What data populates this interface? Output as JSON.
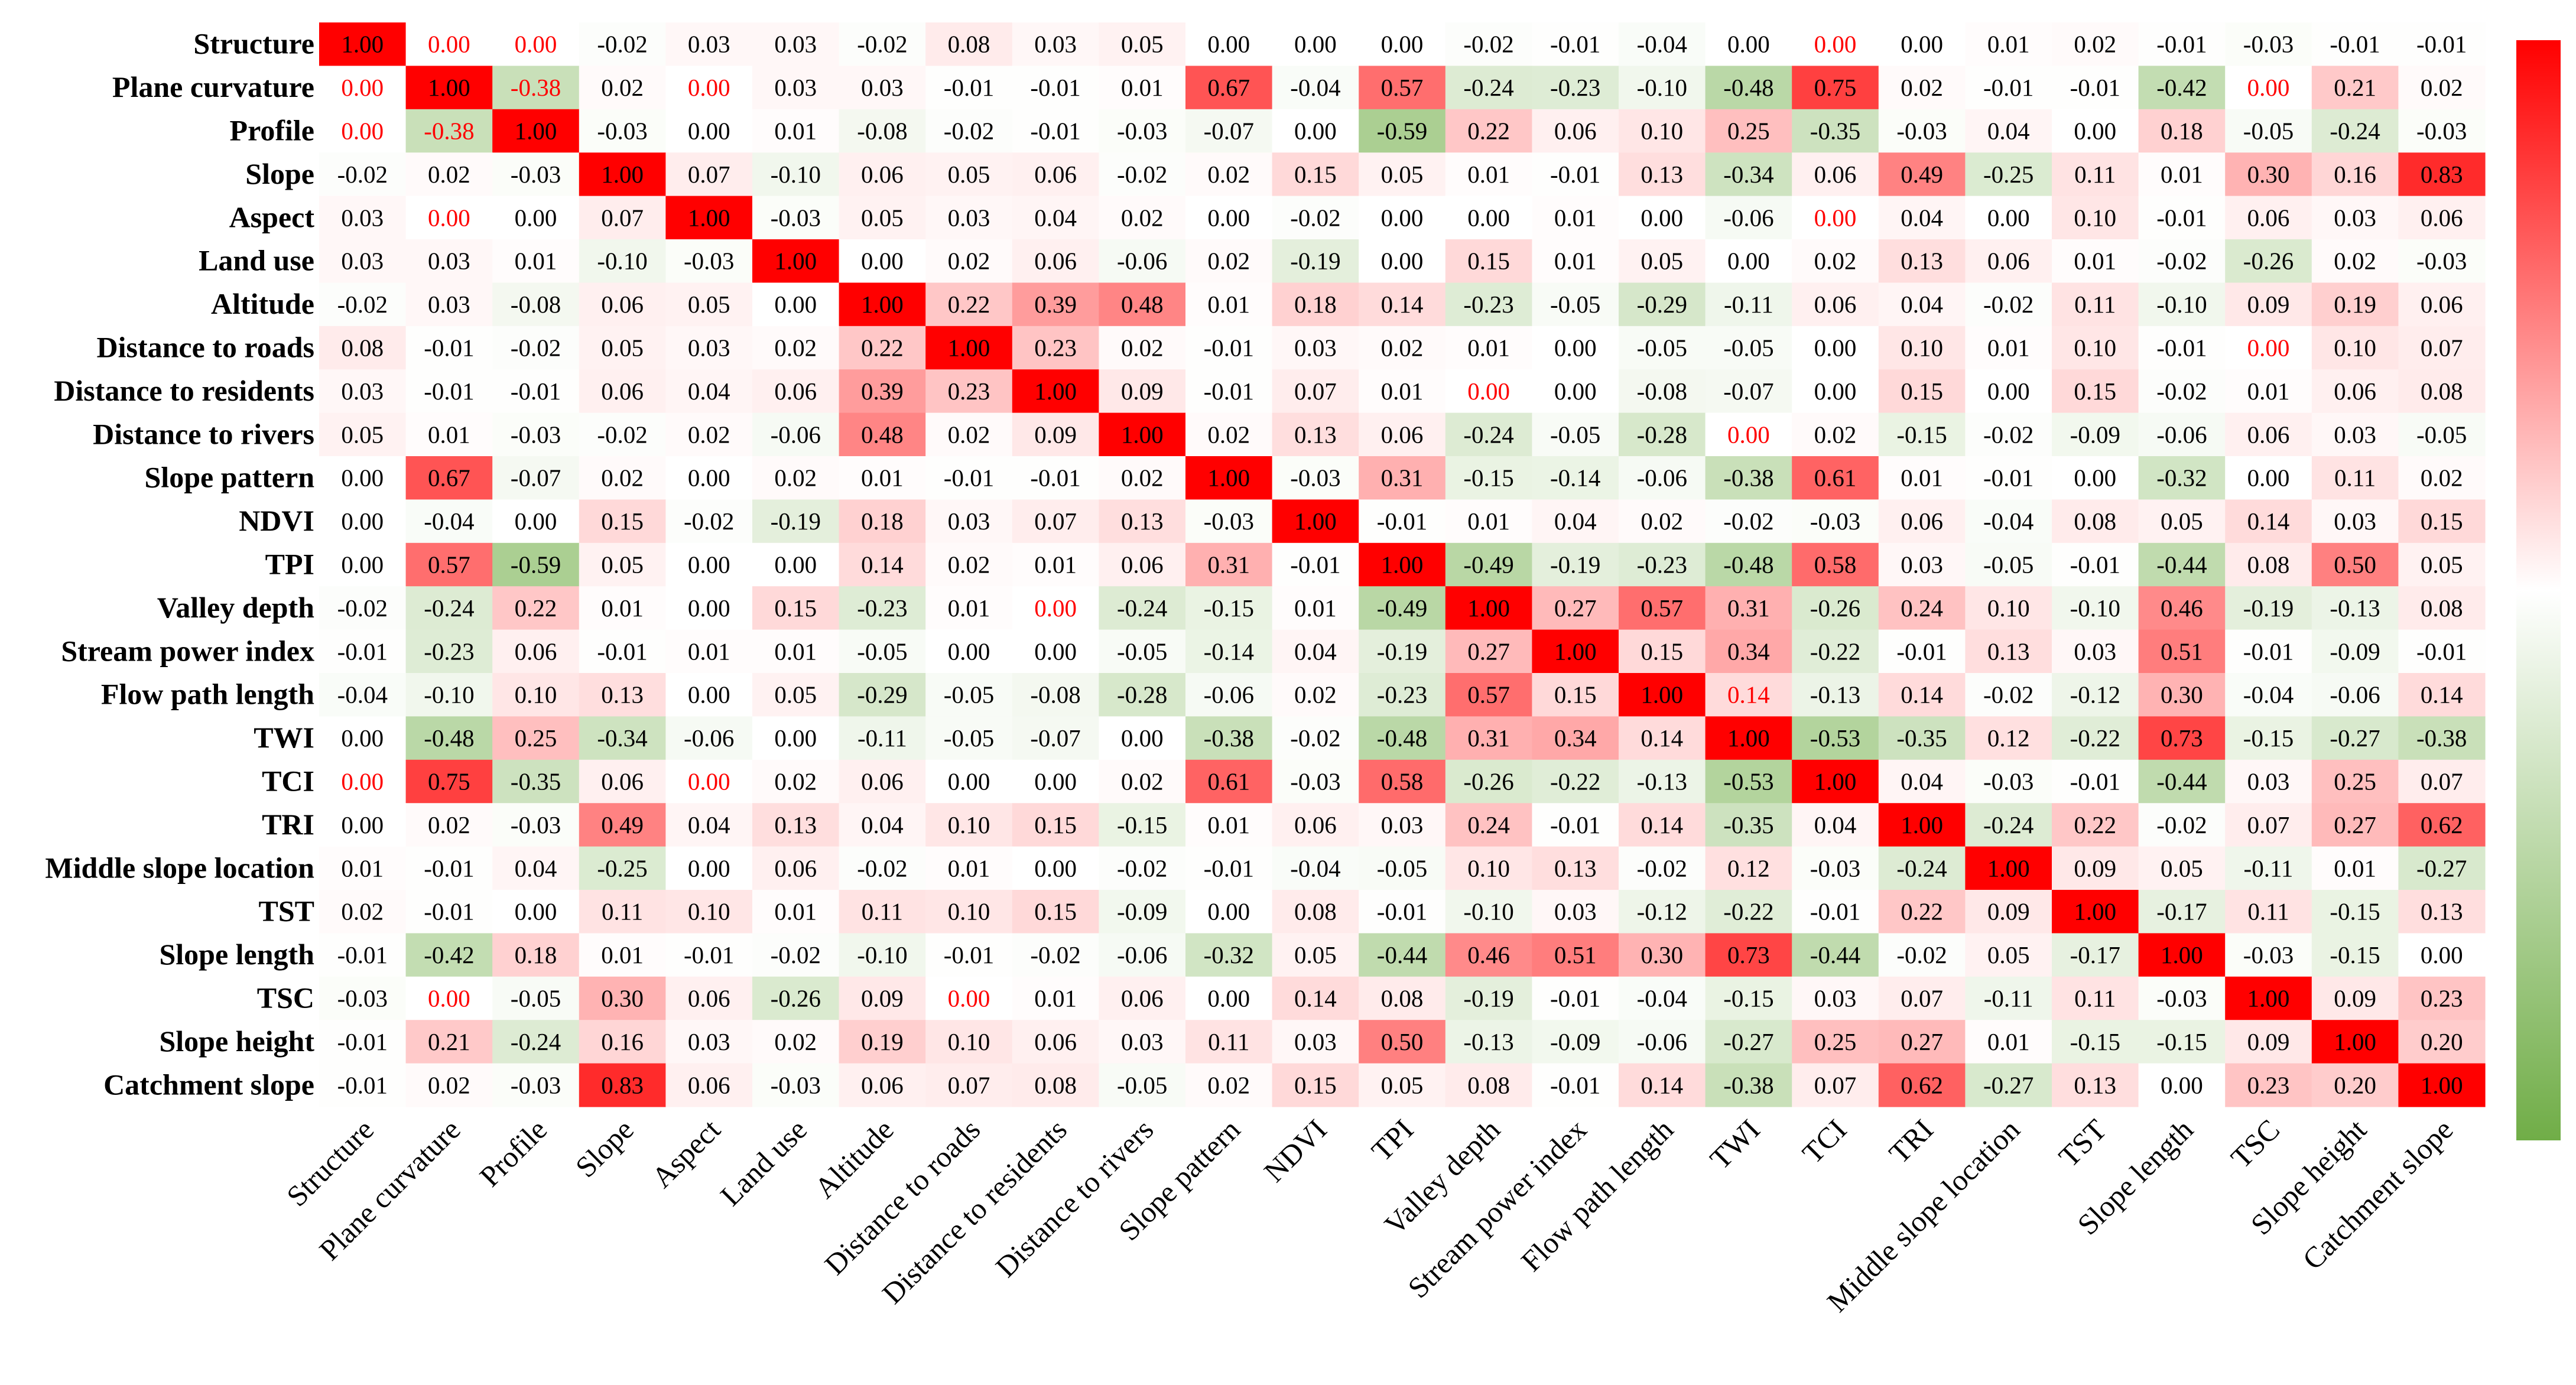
{
  "chart_data": {
    "type": "heatmap",
    "title": "",
    "labels": [
      "Structure",
      "Plane curvature",
      "Profile",
      "Slope",
      "Aspect",
      "Land use",
      "Altitude",
      "Distance to roads",
      "Distance to residents",
      "Distance to rivers",
      "Slope pattern",
      "NDVI",
      "TPI",
      "Valley depth",
      "Stream power index",
      "Flow path length",
      "TWI",
      "TCI",
      "TRI",
      "Middle slope location",
      "TST",
      "Slope length",
      "TSC",
      "Slope height",
      "Catchment slope"
    ],
    "values": [
      [
        "1.00",
        "0.00",
        "0.00",
        "-0.02",
        "0.03",
        "0.03",
        "-0.02",
        "0.08",
        "0.03",
        "0.05",
        "0.00",
        "0.00",
        "0.00",
        "-0.02",
        "-0.01",
        "-0.04",
        "0.00",
        "0.00",
        "0.00",
        "0.01",
        "0.02",
        "-0.01",
        "-0.03",
        "-0.01",
        "-0.01"
      ],
      [
        "0.00",
        "1.00",
        "-0.38",
        "0.02",
        "0.00",
        "0.03",
        "0.03",
        "-0.01",
        "-0.01",
        "0.01",
        "0.67",
        "-0.04",
        "0.57",
        "-0.24",
        "-0.23",
        "-0.10",
        "-0.48",
        "0.75",
        "0.02",
        "-0.01",
        "-0.01",
        "-0.42",
        "0.00",
        "0.21",
        "0.02"
      ],
      [
        "0.00",
        "-0.38",
        "1.00",
        "-0.03",
        "0.00",
        "0.01",
        "-0.08",
        "-0.02",
        "-0.01",
        "-0.03",
        "-0.07",
        "0.00",
        "-0.59",
        "0.22",
        "0.06",
        "0.10",
        "0.25",
        "-0.35",
        "-0.03",
        "0.04",
        "0.00",
        "0.18",
        "-0.05",
        "-0.24",
        "-0.03"
      ],
      [
        "-0.02",
        "0.02",
        "-0.03",
        "1.00",
        "0.07",
        "-0.10",
        "0.06",
        "0.05",
        "0.06",
        "-0.02",
        "0.02",
        "0.15",
        "0.05",
        "0.01",
        "-0.01",
        "0.13",
        "-0.34",
        "0.06",
        "0.49",
        "-0.25",
        "0.11",
        "0.01",
        "0.30",
        "0.16",
        "0.83"
      ],
      [
        "0.03",
        "0.00",
        "0.00",
        "0.07",
        "1.00",
        "-0.03",
        "0.05",
        "0.03",
        "0.04",
        "0.02",
        "0.00",
        "-0.02",
        "0.00",
        "0.00",
        "0.01",
        "0.00",
        "-0.06",
        "0.00",
        "0.04",
        "0.00",
        "0.10",
        "-0.01",
        "0.06",
        "0.03",
        "0.06"
      ],
      [
        "0.03",
        "0.03",
        "0.01",
        "-0.10",
        "-0.03",
        "1.00",
        "0.00",
        "0.02",
        "0.06",
        "-0.06",
        "0.02",
        "-0.19",
        "0.00",
        "0.15",
        "0.01",
        "0.05",
        "0.00",
        "0.02",
        "0.13",
        "0.06",
        "0.01",
        "-0.02",
        "-0.26",
        "0.02",
        "-0.03"
      ],
      [
        "-0.02",
        "0.03",
        "-0.08",
        "0.06",
        "0.05",
        "0.00",
        "1.00",
        "0.22",
        "0.39",
        "0.48",
        "0.01",
        "0.18",
        "0.14",
        "-0.23",
        "-0.05",
        "-0.29",
        "-0.11",
        "0.06",
        "0.04",
        "-0.02",
        "0.11",
        "-0.10",
        "0.09",
        "0.19",
        "0.06"
      ],
      [
        "0.08",
        "-0.01",
        "-0.02",
        "0.05",
        "0.03",
        "0.02",
        "0.22",
        "1.00",
        "0.23",
        "0.02",
        "-0.01",
        "0.03",
        "0.02",
        "0.01",
        "0.00",
        "-0.05",
        "-0.05",
        "0.00",
        "0.10",
        "0.01",
        "0.10",
        "-0.01",
        "0.00",
        "0.10",
        "0.07"
      ],
      [
        "0.03",
        "-0.01",
        "-0.01",
        "0.06",
        "0.04",
        "0.06",
        "0.39",
        "0.23",
        "1.00",
        "0.09",
        "-0.01",
        "0.07",
        "0.01",
        "0.00",
        "0.00",
        "-0.08",
        "-0.07",
        "0.00",
        "0.15",
        "0.00",
        "0.15",
        "-0.02",
        "0.01",
        "0.06",
        "0.08"
      ],
      [
        "0.05",
        "0.01",
        "-0.03",
        "-0.02",
        "0.02",
        "-0.06",
        "0.48",
        "0.02",
        "0.09",
        "1.00",
        "0.02",
        "0.13",
        "0.06",
        "-0.24",
        "-0.05",
        "-0.28",
        "0.00",
        "0.02",
        "-0.15",
        "-0.02",
        "-0.09",
        "-0.06",
        "0.06",
        "0.03",
        "-0.05"
      ],
      [
        "0.00",
        "0.67",
        "-0.07",
        "0.02",
        "0.00",
        "0.02",
        "0.01",
        "-0.01",
        "-0.01",
        "0.02",
        "1.00",
        "-0.03",
        "0.31",
        "-0.15",
        "-0.14",
        "-0.06",
        "-0.38",
        "0.61",
        "0.01",
        "-0.01",
        "0.00",
        "-0.32",
        "0.00",
        "0.11",
        "0.02"
      ],
      [
        "0.00",
        "-0.04",
        "0.00",
        "0.15",
        "-0.02",
        "-0.19",
        "0.18",
        "0.03",
        "0.07",
        "0.13",
        "-0.03",
        "1.00",
        "-0.01",
        "0.01",
        "0.04",
        "0.02",
        "-0.02",
        "-0.03",
        "0.06",
        "-0.04",
        "0.08",
        "0.05",
        "0.14",
        "0.03",
        "0.15"
      ],
      [
        "0.00",
        "0.57",
        "-0.59",
        "0.05",
        "0.00",
        "0.00",
        "0.14",
        "0.02",
        "0.01",
        "0.06",
        "0.31",
        "-0.01",
        "1.00",
        "-0.49",
        "-0.19",
        "-0.23",
        "-0.48",
        "0.58",
        "0.03",
        "-0.05",
        "-0.01",
        "-0.44",
        "0.08",
        "0.50",
        "0.05"
      ],
      [
        "-0.02",
        "-0.24",
        "0.22",
        "0.01",
        "0.00",
        "0.15",
        "-0.23",
        "0.01",
        "0.00",
        "-0.24",
        "-0.15",
        "0.01",
        "-0.49",
        "1.00",
        "0.27",
        "0.57",
        "0.31",
        "-0.26",
        "0.24",
        "0.10",
        "-0.10",
        "0.46",
        "-0.19",
        "-0.13",
        "0.08"
      ],
      [
        "-0.01",
        "-0.23",
        "0.06",
        "-0.01",
        "0.01",
        "0.01",
        "-0.05",
        "0.00",
        "0.00",
        "-0.05",
        "-0.14",
        "0.04",
        "-0.19",
        "0.27",
        "1.00",
        "0.15",
        "0.34",
        "-0.22",
        "-0.01",
        "0.13",
        "0.03",
        "0.51",
        "-0.01",
        "-0.09",
        "-0.01"
      ],
      [
        "-0.04",
        "-0.10",
        "0.10",
        "0.13",
        "0.00",
        "0.05",
        "-0.29",
        "-0.05",
        "-0.08",
        "-0.28",
        "-0.06",
        "0.02",
        "-0.23",
        "0.57",
        "0.15",
        "1.00",
        "0.14",
        "-0.13",
        "0.14",
        "-0.02",
        "-0.12",
        "0.30",
        "-0.04",
        "-0.06",
        "0.14"
      ],
      [
        "0.00",
        "-0.48",
        "0.25",
        "-0.34",
        "-0.06",
        "0.00",
        "-0.11",
        "-0.05",
        "-0.07",
        "0.00",
        "-0.38",
        "-0.02",
        "-0.48",
        "0.31",
        "0.34",
        "0.14",
        "1.00",
        "-0.53",
        "-0.35",
        "0.12",
        "-0.22",
        "0.73",
        "-0.15",
        "-0.27",
        "-0.38"
      ],
      [
        "0.00",
        "0.75",
        "-0.35",
        "0.06",
        "0.00",
        "0.02",
        "0.06",
        "0.00",
        "0.00",
        "0.02",
        "0.61",
        "-0.03",
        "0.58",
        "-0.26",
        "-0.22",
        "-0.13",
        "-0.53",
        "1.00",
        "0.04",
        "-0.03",
        "-0.01",
        "-0.44",
        "0.03",
        "0.25",
        "0.07"
      ],
      [
        "0.00",
        "0.02",
        "-0.03",
        "0.49",
        "0.04",
        "0.13",
        "0.04",
        "0.10",
        "0.15",
        "-0.15",
        "0.01",
        "0.06",
        "0.03",
        "0.24",
        "-0.01",
        "0.14",
        "-0.35",
        "0.04",
        "1.00",
        "-0.24",
        "0.22",
        "-0.02",
        "0.07",
        "0.27",
        "0.62"
      ],
      [
        "0.01",
        "-0.01",
        "0.04",
        "-0.25",
        "0.00",
        "0.06",
        "-0.02",
        "0.01",
        "0.00",
        "-0.02",
        "-0.01",
        "-0.04",
        "-0.05",
        "0.10",
        "0.13",
        "-0.02",
        "0.12",
        "-0.03",
        "-0.24",
        "1.00",
        "0.09",
        "0.05",
        "-0.11",
        "0.01",
        "-0.27"
      ],
      [
        "0.02",
        "-0.01",
        "0.00",
        "0.11",
        "0.10",
        "0.01",
        "0.11",
        "0.10",
        "0.15",
        "-0.09",
        "0.00",
        "0.08",
        "-0.01",
        "-0.10",
        "0.03",
        "-0.12",
        "-0.22",
        "-0.01",
        "0.22",
        "0.09",
        "1.00",
        "-0.17",
        "0.11",
        "-0.15",
        "0.13"
      ],
      [
        "-0.01",
        "-0.42",
        "0.18",
        "0.01",
        "-0.01",
        "-0.02",
        "-0.10",
        "-0.01",
        "-0.02",
        "-0.06",
        "-0.32",
        "0.05",
        "-0.44",
        "0.46",
        "0.51",
        "0.30",
        "0.73",
        "-0.44",
        "-0.02",
        "0.05",
        "-0.17",
        "1.00",
        "-0.03",
        "-0.15",
        "0.00"
      ],
      [
        "-0.03",
        "0.00",
        "-0.05",
        "0.30",
        "0.06",
        "-0.26",
        "0.09",
        "0.00",
        "0.01",
        "0.06",
        "0.00",
        "0.14",
        "0.08",
        "-0.19",
        "-0.01",
        "-0.04",
        "-0.15",
        "0.03",
        "0.07",
        "-0.11",
        "0.11",
        "-0.03",
        "1.00",
        "0.09",
        "0.23"
      ],
      [
        "-0.01",
        "0.21",
        "-0.24",
        "0.16",
        "0.03",
        "0.02",
        "0.19",
        "0.10",
        "0.06",
        "0.03",
        "0.11",
        "0.03",
        "0.50",
        "-0.13",
        "-0.09",
        "-0.06",
        "-0.27",
        "0.25",
        "0.27",
        "0.01",
        "-0.15",
        "-0.15",
        "0.09",
        "1.00",
        "0.20"
      ],
      [
        "-0.01",
        "0.02",
        "-0.03",
        "0.83",
        "0.06",
        "-0.03",
        "0.06",
        "0.07",
        "0.08",
        "-0.05",
        "0.02",
        "0.15",
        "0.05",
        "0.08",
        "-0.01",
        "0.14",
        "-0.38",
        "0.07",
        "0.62",
        "-0.27",
        "0.13",
        "0.00",
        "0.23",
        "0.20",
        "1.00"
      ]
    ],
    "red_text_cells": [
      [
        0,
        1
      ],
      [
        0,
        2
      ],
      [
        0,
        17
      ],
      [
        1,
        0
      ],
      [
        1,
        2
      ],
      [
        1,
        4
      ],
      [
        1,
        22
      ],
      [
        2,
        0
      ],
      [
        2,
        1
      ],
      [
        4,
        1
      ],
      [
        4,
        17
      ],
      [
        7,
        22
      ],
      [
        8,
        13
      ],
      [
        9,
        16
      ],
      [
        13,
        8
      ],
      [
        15,
        16
      ],
      [
        17,
        0
      ],
      [
        17,
        4
      ],
      [
        22,
        1
      ],
      [
        22,
        7
      ]
    ],
    "colorscale": {
      "min": -1,
      "max": 1,
      "low": "#70ad47",
      "mid": "#ffffff",
      "high": "#ff0000"
    },
    "colorbar": {
      "position": "right",
      "ticks": []
    },
    "text_colors": {
      "normal": "#000000",
      "highlight": "#ff0000"
    }
  }
}
